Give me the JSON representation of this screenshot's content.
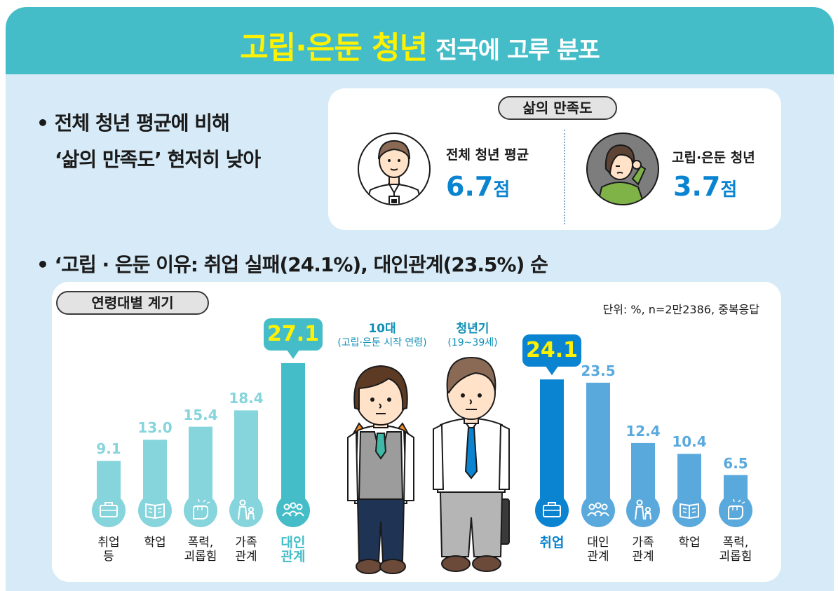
{
  "banner": {
    "title_highlight": "고립·은둔 청년",
    "title_rest": "전국에 고루 분포"
  },
  "bullet1": {
    "line1": "• 전체 청년 평균에 비해",
    "line2": "‘삶의 만족도’ 현저히 낮아"
  },
  "satisfaction": {
    "title": "삶의 만족도",
    "items": [
      {
        "label": "전체 청년 평균",
        "value": "6.7",
        "unit": "점"
      },
      {
        "label": "고립·은둔 청년",
        "value": "3.7",
        "unit": "점"
      }
    ]
  },
  "bullet2": "• ‘고립 · 은둔 이유: 취업 실패(24.1%), 대인관계(23.5%) 순",
  "chart_section": {
    "title": "연령대별 계기",
    "unit_note": "단위: %, n=2만2386, 중복응답",
    "group_teen": {
      "title": "10대",
      "subtitle": "(고립·은둔 시작 연령)"
    },
    "group_youth": {
      "title": "청년기",
      "subtitle": "(19~39세)"
    }
  },
  "chart_data": [
    {
      "type": "bar",
      "series_group": "10대",
      "categories": [
        "취업 등",
        "학업",
        "폭력, 괴롭힘",
        "가족 관계",
        "대인 관계"
      ],
      "category_lines": [
        [
          "취업",
          "등"
        ],
        [
          "학업"
        ],
        [
          "폭력,",
          "괴롭힘"
        ],
        [
          "가족",
          "관계"
        ],
        [
          "대인",
          "관계"
        ]
      ],
      "values": [
        9.1,
        13.0,
        15.4,
        18.4,
        27.1
      ],
      "value_labels": [
        "9.1",
        "13.0",
        "15.4",
        "18.4",
        "27.1"
      ],
      "icons": [
        "briefcase-icon",
        "book-icon",
        "fist-icon",
        "family-icon",
        "people-icon"
      ],
      "highlight_index": 4,
      "colors": {
        "bar": "#86d4dc",
        "highlight": "#45bdc8",
        "callout": "#45bdc8",
        "callout_text": "#fff200"
      }
    },
    {
      "type": "bar",
      "series_group": "청년기",
      "categories": [
        "취업",
        "대인 관계",
        "가족 관계",
        "학업",
        "폭력, 괴롭힘"
      ],
      "category_lines": [
        [
          "취업"
        ],
        [
          "대인",
          "관계"
        ],
        [
          "가족",
          "관계"
        ],
        [
          "학업"
        ],
        [
          "폭력,",
          "괴롭힘"
        ]
      ],
      "values": [
        24.1,
        23.5,
        12.4,
        10.4,
        6.5
      ],
      "value_labels": [
        "24.1",
        "23.5",
        "12.4",
        "10.4",
        "6.5"
      ],
      "icons": [
        "briefcase-icon",
        "people-icon",
        "family-icon",
        "book-icon",
        "fist-icon"
      ],
      "highlight_index": 0,
      "colors": {
        "bar": "#5aa9dd",
        "highlight": "#0a84d0",
        "callout": "#0a84d0",
        "callout_text": "#fff200"
      }
    }
  ]
}
